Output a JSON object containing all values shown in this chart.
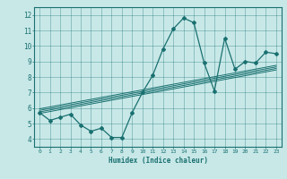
{
  "xlabel": "Humidex (Indice chaleur)",
  "ylabel": "",
  "xlim": [
    -0.5,
    23.5
  ],
  "ylim": [
    3.5,
    12.5
  ],
  "xticks": [
    0,
    1,
    2,
    3,
    4,
    5,
    6,
    7,
    8,
    9,
    10,
    11,
    12,
    13,
    14,
    15,
    16,
    17,
    18,
    19,
    20,
    21,
    22,
    23
  ],
  "yticks": [
    4,
    5,
    6,
    7,
    8,
    9,
    10,
    11,
    12
  ],
  "bg_color": "#c8e8e8",
  "line_color": "#1a7070",
  "main_x": [
    0,
    1,
    2,
    3,
    4,
    5,
    6,
    7,
    8,
    9,
    10,
    11,
    12,
    13,
    14,
    15,
    16,
    17,
    18,
    19,
    20,
    21,
    22,
    23
  ],
  "main_y": [
    5.7,
    5.2,
    5.4,
    5.6,
    4.9,
    4.5,
    4.7,
    4.1,
    4.1,
    5.7,
    7.0,
    8.1,
    9.8,
    11.1,
    11.8,
    11.5,
    8.9,
    7.1,
    10.5,
    8.5,
    9.0,
    8.9,
    9.6,
    9.5
  ],
  "reg_lines": [
    {
      "x": [
        0,
        23
      ],
      "y": [
        5.65,
        8.45
      ]
    },
    {
      "x": [
        0,
        23
      ],
      "y": [
        5.75,
        8.55
      ]
    },
    {
      "x": [
        0,
        23
      ],
      "y": [
        5.85,
        8.65
      ]
    },
    {
      "x": [
        0,
        23
      ],
      "y": [
        5.95,
        8.75
      ]
    }
  ],
  "figsize": [
    3.2,
    2.0
  ],
  "dpi": 100
}
